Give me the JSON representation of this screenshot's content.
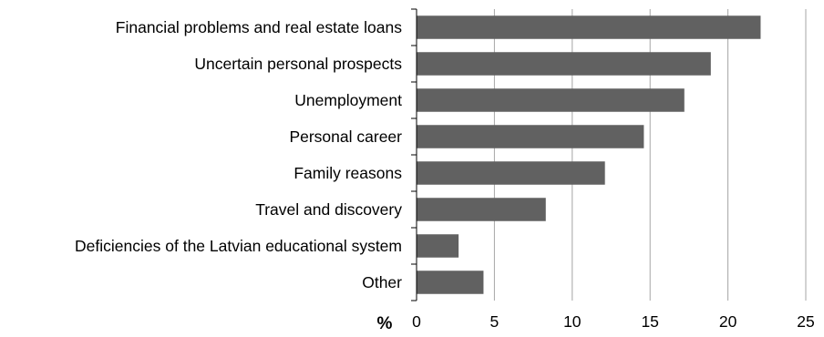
{
  "chart_data": {
    "type": "bar",
    "orientation": "horizontal",
    "categories": [
      "Financial problems and real estate loans",
      "Uncertain personal prospects",
      "Unemployment",
      "Personal career",
      "Family reasons",
      "Travel and discovery",
      "Deficiencies of the Latvian educational system",
      "Other"
    ],
    "values": [
      22.1,
      18.9,
      17.2,
      14.6,
      12.1,
      8.3,
      2.7,
      4.3
    ],
    "xlabel": "%",
    "ylabel": "",
    "xlim": [
      0,
      25
    ],
    "xticks": [
      "0",
      "5",
      "10",
      "15",
      "20",
      "25"
    ],
    "grid": "vertical",
    "bar_color": "#616161",
    "grid_color": "#a6a6a6"
  }
}
